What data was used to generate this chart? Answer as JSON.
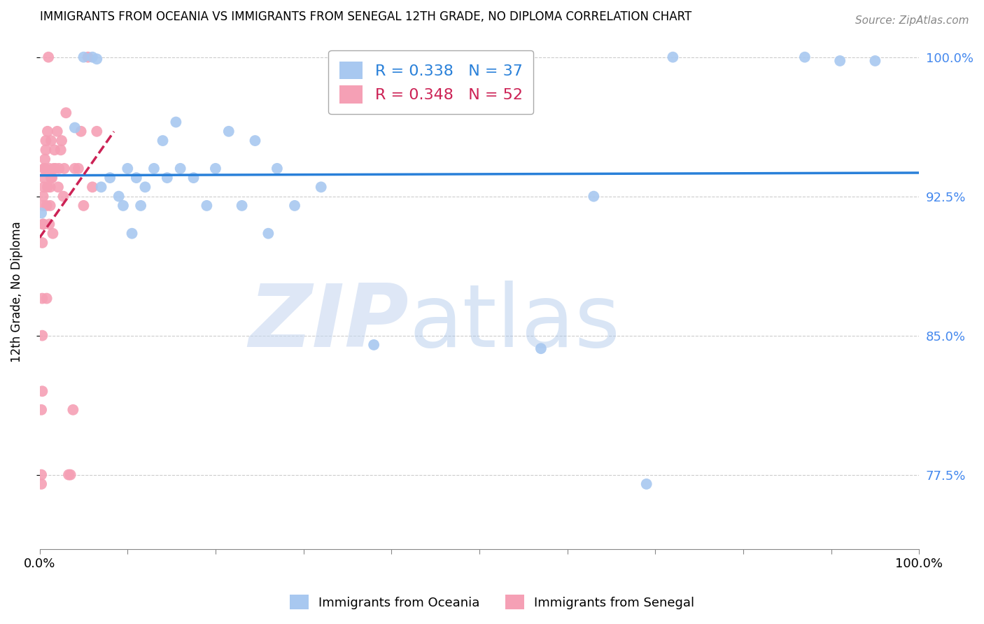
{
  "title": "IMMIGRANTS FROM OCEANIA VS IMMIGRANTS FROM SENEGAL 12TH GRADE, NO DIPLOMA CORRELATION CHART",
  "source": "Source: ZipAtlas.com",
  "ylabel": "12th Grade, No Diploma",
  "xlabel": "",
  "xlim": [
    0.0,
    1.0
  ],
  "ylim": [
    0.735,
    1.012
  ],
  "yticks": [
    0.775,
    0.85,
    0.925,
    1.0
  ],
  "ytick_labels": [
    "77.5%",
    "85.0%",
    "92.5%",
    "100.0%"
  ],
  "xticks": [
    0.0,
    0.1,
    0.2,
    0.3,
    0.4,
    0.5,
    0.6,
    0.7,
    0.8,
    0.9,
    1.0
  ],
  "xtick_labels": [
    "0.0%",
    "",
    "",
    "",
    "",
    "",
    "",
    "",
    "",
    "",
    "100.0%"
  ],
  "oceania_color": "#a8c8f0",
  "senegal_color": "#f5a0b5",
  "trendline_oceania_color": "#2980d9",
  "trendline_senegal_color": "#cc2255",
  "trendline_senegal_dashed": true,
  "R_oceania": 0.338,
  "N_oceania": 37,
  "R_senegal": 0.348,
  "N_senegal": 52,
  "oceania_x": [
    0.002,
    0.04,
    0.05,
    0.06,
    0.065,
    0.07,
    0.08,
    0.09,
    0.095,
    0.1,
    0.105,
    0.11,
    0.115,
    0.12,
    0.13,
    0.14,
    0.145,
    0.155,
    0.16,
    0.175,
    0.19,
    0.2,
    0.215,
    0.23,
    0.245,
    0.26,
    0.27,
    0.29,
    0.32,
    0.38,
    0.57,
    0.63,
    0.69,
    0.72,
    0.87,
    0.91,
    0.95
  ],
  "oceania_y": [
    0.916,
    0.962,
    1.0,
    1.0,
    0.999,
    0.93,
    0.935,
    0.925,
    0.92,
    0.94,
    0.905,
    0.935,
    0.92,
    0.93,
    0.94,
    0.955,
    0.935,
    0.965,
    0.94,
    0.935,
    0.92,
    0.94,
    0.96,
    0.92,
    0.955,
    0.905,
    0.94,
    0.92,
    0.93,
    0.845,
    0.843,
    0.925,
    0.77,
    1.0,
    1.0,
    0.998,
    0.998
  ],
  "senegal_x": [
    0.002,
    0.002,
    0.002,
    0.003,
    0.003,
    0.003,
    0.003,
    0.004,
    0.004,
    0.004,
    0.004,
    0.005,
    0.005,
    0.005,
    0.006,
    0.006,
    0.007,
    0.007,
    0.008,
    0.008,
    0.009,
    0.009,
    0.01,
    0.011,
    0.011,
    0.012,
    0.012,
    0.013,
    0.013,
    0.014,
    0.015,
    0.016,
    0.017,
    0.018,
    0.02,
    0.021,
    0.022,
    0.024,
    0.025,
    0.027,
    0.028,
    0.03,
    0.033,
    0.035,
    0.038,
    0.04,
    0.044,
    0.047,
    0.05,
    0.055,
    0.06,
    0.065
  ],
  "senegal_y": [
    0.77,
    0.775,
    0.81,
    0.82,
    0.85,
    0.87,
    0.9,
    0.91,
    0.91,
    0.92,
    0.925,
    0.93,
    0.935,
    0.94,
    0.94,
    0.945,
    0.95,
    0.955,
    0.87,
    0.92,
    0.93,
    0.96,
    1.0,
    0.91,
    0.94,
    0.92,
    0.93,
    0.935,
    0.955,
    0.935,
    0.905,
    0.94,
    0.95,
    0.94,
    0.96,
    0.93,
    0.94,
    0.95,
    0.955,
    0.925,
    0.94,
    0.97,
    0.775,
    0.775,
    0.81,
    0.94,
    0.94,
    0.96,
    0.92,
    1.0,
    0.93,
    0.96
  ],
  "watermark_zip": "ZIP",
  "watermark_atlas": "atlas",
  "background_color": "#ffffff",
  "grid_color": "#cccccc",
  "right_axis_color": "#4488ee",
  "legend_border_color": "#aaaaaa"
}
